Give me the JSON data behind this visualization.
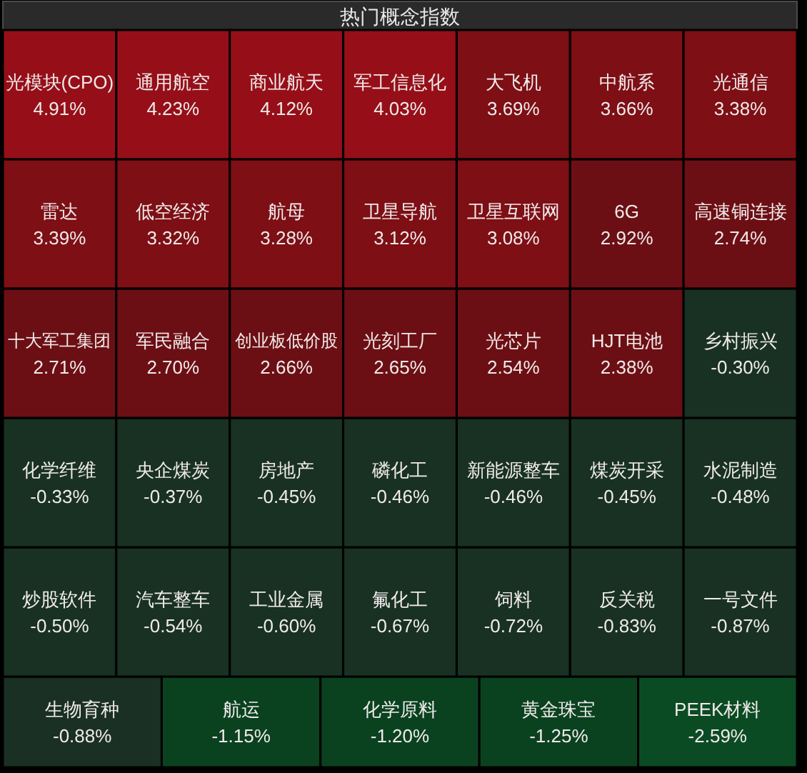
{
  "chart_data": {
    "type": "other",
    "title": "热门概念指数",
    "categories": [
      "光模块(CPO)",
      "通用航空",
      "商业航天",
      "军工信息化",
      "大飞机",
      "中航系",
      "光通信",
      "雷达",
      "低空经济",
      "航母",
      "卫星导航",
      "卫星互联网",
      "6G",
      "高速铜连接",
      "十大军工集团",
      "军民融合",
      "创业板低价股",
      "光刻工厂",
      "光芯片",
      "HJT电池",
      "乡村振兴",
      "化学纤维",
      "央企煤炭",
      "房地产",
      "磷化工",
      "新能源整车",
      "煤炭开采",
      "水泥制造",
      "炒股软件",
      "汽车整车",
      "工业金属",
      "氟化工",
      "饲料",
      "反关税",
      "一号文件",
      "生物育种",
      "航运",
      "化学原料",
      "黄金珠宝",
      "PEEK材料"
    ],
    "values": [
      4.91,
      4.23,
      4.12,
      4.03,
      3.69,
      3.66,
      3.38,
      3.39,
      3.32,
      3.28,
      3.12,
      3.08,
      2.92,
      2.74,
      2.71,
      2.7,
      2.66,
      2.65,
      2.54,
      2.38,
      -0.3,
      -0.33,
      -0.37,
      -0.45,
      -0.46,
      -0.46,
      -0.45,
      -0.48,
      -0.5,
      -0.54,
      -0.6,
      -0.67,
      -0.72,
      -0.83,
      -0.87,
      -0.88,
      -1.15,
      -1.2,
      -1.25,
      -2.59
    ],
    "value_labels": [
      "4.91%",
      "4.23%",
      "4.12%",
      "4.03%",
      "3.69%",
      "3.66%",
      "3.38%",
      "3.39%",
      "3.32%",
      "3.28%",
      "3.12%",
      "3.08%",
      "2.92%",
      "2.74%",
      "2.71%",
      "2.70%",
      "2.66%",
      "2.65%",
      "2.54%",
      "2.38%",
      "-0.30%",
      "-0.33%",
      "-0.37%",
      "-0.45%",
      "-0.46%",
      "-0.46%",
      "-0.45%",
      "-0.48%",
      "-0.50%",
      "-0.54%",
      "-0.60%",
      "-0.67%",
      "-0.72%",
      "-0.83%",
      "-0.87%",
      "-0.88%",
      "-1.15%",
      "-1.20%",
      "-1.25%",
      "-2.59%"
    ],
    "colors": [
      "#960f18",
      "#960f18",
      "#960f18",
      "#960f18",
      "#7d0f15",
      "#7d0f15",
      "#7d0f15",
      "#7d0f15",
      "#7d0f15",
      "#7d0f15",
      "#7d0f15",
      "#7d0f15",
      "#6c0f14",
      "#6c0f14",
      "#6c0f14",
      "#6c0f14",
      "#6c0f14",
      "#6c0f14",
      "#6c0f14",
      "#6c0f14",
      "#183123",
      "#183123",
      "#183123",
      "#183123",
      "#183123",
      "#183123",
      "#183123",
      "#183123",
      "#183123",
      "#183123",
      "#183123",
      "#183123",
      "#183123",
      "#183123",
      "#183123",
      "#1a3024",
      "#0a4220",
      "#0a4220",
      "#0a4220",
      "#0b4b23"
    ]
  }
}
